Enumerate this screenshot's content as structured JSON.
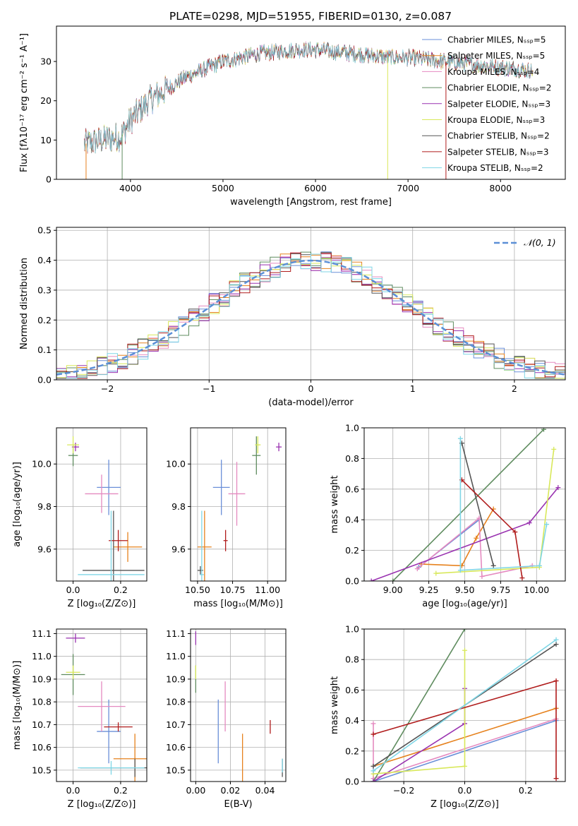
{
  "figure_title": "PLATE=0298, MJD=51955, FIBERID=0130, z=0.087",
  "colors": {
    "chabrier_miles": "#6a8fd8",
    "salpeter_miles": "#e6821e",
    "kroupa_miles": "#e58ac0",
    "chabrier_elodie": "#5f8c5f",
    "salpeter_elodie": "#9932b0",
    "kroupa_elodie": "#d8e85a",
    "chabrier_stelib": "#555555",
    "salpeter_stelib": "#b01c1c",
    "kroupa_stelib": "#7fd6e6"
  },
  "chart_data": [
    {
      "id": "spectrum",
      "type": "line",
      "xlabel": "wavelength [Angstrom, rest frame]",
      "ylabel": "Flux [fλ10⁻¹⁷ erg cm⁻² s⁻¹ A⁻¹]",
      "xlim": [
        3200,
        8700
      ],
      "ylim": [
        0,
        39
      ],
      "xticks": [
        4000,
        5000,
        6000,
        7000,
        8000
      ],
      "yticks": [
        0,
        10,
        20,
        30
      ],
      "grid": false,
      "legend_position": "top-right",
      "legend": [
        {
          "label": "Chabrier MILES, Nₛₛₚ=5",
          "color_key": "chabrier_miles"
        },
        {
          "label": "Salpeter MILES, Nₛₛₚ=5",
          "color_key": "salpeter_miles"
        },
        {
          "label": "Kroupa MILES, Nₛₛₚ=4",
          "color_key": "kroupa_miles"
        },
        {
          "label": "Chabrier ELODIE, Nₛₛₚ=2",
          "color_key": "chabrier_elodie"
        },
        {
          "label": "Salpeter ELODIE, Nₛₛₚ=3",
          "color_key": "salpeter_elodie"
        },
        {
          "label": "Kroupa ELODIE, Nₛₛₚ=3",
          "color_key": "kroupa_elodie"
        },
        {
          "label": "Chabrier STELIB, Nₛₛₚ=2",
          "color_key": "chabrier_stelib"
        },
        {
          "label": "Salpeter STELIB, Nₛₛₚ=3",
          "color_key": "salpeter_stelib"
        },
        {
          "label": "Kroupa STELIB, Nₛₛₚ=2",
          "color_key": "kroupa_stelib"
        }
      ],
      "continuum": {
        "x": [
          3500,
          3700,
          3900,
          4000,
          4200,
          4400,
          4600,
          4800,
          5000,
          5200,
          5400,
          5600,
          5800,
          6000,
          6200,
          6400,
          6600,
          6800,
          7000,
          7200,
          7400,
          7600,
          7800,
          8000,
          8200,
          8350
        ],
        "y": [
          9,
          10,
          11,
          15,
          20,
          23,
          26,
          28,
          30,
          31,
          32,
          32.5,
          33,
          33,
          32.5,
          32,
          31.5,
          31,
          31,
          30.5,
          30,
          29.5,
          29,
          28.5,
          28,
          27.5
        ]
      },
      "dropouts": [
        {
          "x": 3520,
          "y": 0
        },
        {
          "x": 3910,
          "y": 0
        },
        {
          "x": 6780,
          "y": 0
        },
        {
          "x": 7410,
          "y": 0
        }
      ]
    },
    {
      "id": "residuals",
      "type": "histogram",
      "xlabel": "(data-model)/error",
      "ylabel": "Normed distribution",
      "xlim": [
        -2.5,
        2.5
      ],
      "ylim": [
        0,
        0.51
      ],
      "xticks": [
        -2,
        -1,
        0,
        1,
        2
      ],
      "yticks": [
        0,
        0.1,
        0.2,
        0.3,
        0.4,
        0.5
      ],
      "grid": true,
      "bin_edges_range": [
        -2.5,
        2.5
      ],
      "bins": 50,
      "reference_curve": {
        "label": "𝒩(0, 1)",
        "mean": 0,
        "sigma": 1,
        "style": "dashed"
      },
      "legend_position": "top-right"
    },
    {
      "id": "age-vs-Z",
      "type": "scatter-errorbar",
      "xlabel": "Z [log₁₀(Z/Z⊙)]",
      "ylabel": "age  [log₁₀(age/yr)]",
      "xlim": [
        -0.07,
        0.31
      ],
      "ylim": [
        9.45,
        10.17
      ],
      "xticks": [
        0.0,
        0.2
      ],
      "yticks": [
        9.6,
        9.8,
        10.0
      ],
      "grid": true,
      "points": [
        {
          "key": "chabrier_miles",
          "x": 0.15,
          "xerr": 0.05,
          "y": 9.89,
          "yerr": 0.13
        },
        {
          "key": "salpeter_miles",
          "x": 0.23,
          "xerr": 0.06,
          "y": 9.61,
          "yerr": 0.07
        },
        {
          "key": "kroupa_miles",
          "x": 0.12,
          "xerr": 0.07,
          "y": 9.86,
          "yerr": 0.09
        },
        {
          "key": "chabrier_elodie",
          "x": 0.0,
          "xerr": 0.02,
          "y": 10.04,
          "yerr": 0.05
        },
        {
          "key": "salpeter_elodie",
          "x": 0.01,
          "xerr": 0.015,
          "y": 10.08,
          "yerr": 0.02
        },
        {
          "key": "kroupa_elodie",
          "x": 0.0,
          "xerr": 0.025,
          "y": 10.09,
          "yerr": 0.04
        },
        {
          "key": "chabrier_stelib",
          "x": 0.17,
          "xerr": 0.13,
          "y": 9.5,
          "yerr": 0.28
        },
        {
          "key": "salpeter_stelib",
          "x": 0.19,
          "xerr": 0.04,
          "y": 9.64,
          "yerr": 0.05
        },
        {
          "key": "kroupa_stelib",
          "x": 0.16,
          "xerr": 0.14,
          "y": 9.48,
          "yerr": 0.3
        }
      ]
    },
    {
      "id": "age-vs-mass",
      "type": "scatter-errorbar",
      "xlabel": "mass [log₁₀(M/M⊙)]",
      "ylabel": "",
      "xlim": [
        10.45,
        11.13
      ],
      "ylim": [
        9.45,
        10.17
      ],
      "xticks": [
        10.5,
        10.75,
        11.0
      ],
      "yticks": [
        9.6,
        9.8,
        10.0
      ],
      "grid": true,
      "points": [
        {
          "key": "chabrier_miles",
          "x": 10.67,
          "xerr": 0.06,
          "y": 9.89,
          "yerr": 0.13
        },
        {
          "key": "salpeter_miles",
          "x": 10.55,
          "xerr": 0.05,
          "y": 9.61,
          "yerr": 0.17
        },
        {
          "key": "kroupa_miles",
          "x": 10.78,
          "xerr": 0.06,
          "y": 9.86,
          "yerr": 0.15
        },
        {
          "key": "chabrier_elodie",
          "x": 10.92,
          "xerr": 0.03,
          "y": 10.04,
          "yerr": 0.09
        },
        {
          "key": "salpeter_elodie",
          "x": 11.08,
          "xerr": 0.02,
          "y": 10.08,
          "yerr": 0.02
        },
        {
          "key": "kroupa_elodie",
          "x": 10.93,
          "xerr": 0.02,
          "y": 10.09,
          "yerr": 0.04
        },
        {
          "key": "chabrier_stelib",
          "x": 10.52,
          "xerr": 0.02,
          "y": 9.5,
          "yerr": 0.02
        },
        {
          "key": "salpeter_stelib",
          "x": 10.7,
          "xerr": 0.015,
          "y": 9.64,
          "yerr": 0.05
        },
        {
          "key": "kroupa_stelib",
          "x": 10.53,
          "xerr": 0.015,
          "y": 9.48,
          "yerr": 0.3
        }
      ]
    },
    {
      "id": "weight-vs-age",
      "type": "line-marker",
      "xlabel": "age  [log₁₀(age/yr)]",
      "ylabel": "mass weight",
      "xlim": [
        8.8,
        10.2
      ],
      "ylim": [
        0,
        1
      ],
      "xticks": [
        9.0,
        9.25,
        9.5,
        9.75,
        10.0
      ],
      "yticks": [
        0.0,
        0.2,
        0.4,
        0.6,
        0.8,
        1.0
      ],
      "grid": true,
      "series": [
        {
          "key": "chabrier_miles",
          "x": [
            9.18,
            9.6
          ],
          "y": [
            0.09,
            0.4
          ]
        },
        {
          "key": "salpeter_miles",
          "x": [
            9.2,
            9.48,
            9.58,
            9.7
          ],
          "y": [
            0.11,
            0.1,
            0.28,
            0.47
          ]
        },
        {
          "key": "kroupa_miles",
          "x": [
            9.17,
            9.6,
            9.62,
            9.97
          ],
          "y": [
            0.08,
            0.41,
            0.03,
            0.1
          ]
        },
        {
          "key": "chabrier_elodie",
          "x": [
            9.0,
            10.05
          ],
          "y": [
            0.0,
            0.99
          ]
        },
        {
          "key": "salpeter_elodie",
          "x": [
            8.85,
            9.95,
            10.15
          ],
          "y": [
            0.0,
            0.38,
            0.61
          ]
        },
        {
          "key": "kroupa_elodie",
          "x": [
            9.3,
            10.02,
            10.12
          ],
          "y": [
            0.05,
            0.09,
            0.86
          ]
        },
        {
          "key": "chabrier_stelib",
          "x": [
            9.48,
            9.7
          ],
          "y": [
            0.9,
            0.1
          ]
        },
        {
          "key": "salpeter_stelib",
          "x": [
            9.48,
            9.85,
            9.9
          ],
          "y": [
            0.66,
            0.32,
            0.02
          ]
        },
        {
          "key": "kroupa_stelib",
          "x": [
            9.47,
            9.47,
            10.02,
            10.07
          ],
          "y": [
            0.93,
            0.07,
            0.1,
            0.37
          ]
        }
      ]
    },
    {
      "id": "mass-vs-Z",
      "type": "scatter-errorbar",
      "xlabel": "Z [log₁₀(Z/Z⊙)]",
      "ylabel": "mass [log₁₀(M/M⊙)]",
      "xlim": [
        -0.07,
        0.31
      ],
      "ylim": [
        10.45,
        11.12
      ],
      "xticks": [
        0.0,
        0.2
      ],
      "yticks": [
        10.5,
        10.6,
        10.7,
        10.8,
        10.9,
        11.0,
        11.1
      ],
      "grid": true,
      "points": [
        {
          "key": "chabrier_miles",
          "x": 0.15,
          "xerr": 0.05,
          "y": 10.67,
          "yerr": 0.14
        },
        {
          "key": "salpeter_miles",
          "x": 0.26,
          "xerr": 0.09,
          "y": 10.55,
          "yerr": 0.11
        },
        {
          "key": "kroupa_miles",
          "x": 0.12,
          "xerr": 0.1,
          "y": 10.78,
          "yerr": 0.11
        },
        {
          "key": "chabrier_elodie",
          "x": 0.0,
          "xerr": 0.05,
          "y": 10.92,
          "yerr": 0.09
        },
        {
          "key": "salpeter_elodie",
          "x": 0.01,
          "xerr": 0.04,
          "y": 11.08,
          "yerr": 0.02
        },
        {
          "key": "kroupa_elodie",
          "x": 0.0,
          "xerr": 0.03,
          "y": 10.93,
          "yerr": 0.03
        },
        {
          "key": "chabrier_stelib",
          "x": 0.26,
          "xerr": 0.23,
          "y": 10.51,
          "yerr": 0.04
        },
        {
          "key": "salpeter_stelib",
          "x": 0.19,
          "xerr": 0.06,
          "y": 10.69,
          "yerr": 0.02
        },
        {
          "key": "kroupa_stelib",
          "x": 0.16,
          "xerr": 0.14,
          "y": 10.51,
          "yerr": 0.03
        }
      ]
    },
    {
      "id": "mass-vs-EBV",
      "type": "scatter-errorbar",
      "xlabel": "E(B-V)",
      "ylabel": "",
      "xlim": [
        -0.003,
        0.052
      ],
      "ylim": [
        10.45,
        11.12
      ],
      "xticks": [
        0.0,
        0.02,
        0.04
      ],
      "yticks": [
        10.5,
        10.6,
        10.7,
        10.8,
        10.9,
        11.0,
        11.1
      ],
      "grid": true,
      "points": [
        {
          "key": "chabrier_miles",
          "x": 0.013,
          "xerr": 0,
          "y": 10.67,
          "yerr": 0.14
        },
        {
          "key": "salpeter_miles",
          "x": 0.027,
          "xerr": 0,
          "y": 10.55,
          "yerr": 0.11
        },
        {
          "key": "kroupa_miles",
          "x": 0.017,
          "xerr": 0,
          "y": 10.78,
          "yerr": 0.11
        },
        {
          "key": "chabrier_elodie",
          "x": 0.0,
          "xerr": 0,
          "y": 10.9,
          "yerr": 0.06
        },
        {
          "key": "salpeter_elodie",
          "x": 0.0,
          "xerr": 0,
          "y": 11.08,
          "yerr": 0.03
        },
        {
          "key": "kroupa_elodie",
          "x": 0.0,
          "xerr": 0,
          "y": 10.93,
          "yerr": 0.03
        },
        {
          "key": "chabrier_stelib",
          "x": 0.05,
          "xerr": 0,
          "y": 10.51,
          "yerr": 0.04
        },
        {
          "key": "salpeter_stelib",
          "x": 0.043,
          "xerr": 0,
          "y": 10.69,
          "yerr": 0.03
        },
        {
          "key": "kroupa_stelib",
          "x": 0.05,
          "xerr": 0,
          "y": 10.52,
          "yerr": 0.03
        }
      ]
    },
    {
      "id": "weight-vs-Z",
      "type": "line-marker",
      "xlabel": "Z [log₁₀(Z/Z⊙)]",
      "ylabel": "mass weight",
      "xlim": [
        -0.33,
        0.33
      ],
      "ylim": [
        0,
        1
      ],
      "xticks": [
        -0.2,
        0.0,
        0.2
      ],
      "yticks": [
        0.0,
        0.2,
        0.4,
        0.6,
        0.8,
        1.0
      ],
      "grid": true,
      "series": [
        {
          "key": "chabrier_miles",
          "x": [
            -0.3,
            0.3
          ],
          "y": [
            0.0,
            0.4
          ]
        },
        {
          "key": "salpeter_miles",
          "x": [
            -0.3,
            0.3
          ],
          "y": [
            0.1,
            0.48
          ]
        },
        {
          "key": "kroupa_miles",
          "x": [
            -0.3,
            -0.3,
            0.3
          ],
          "y": [
            0.38,
            0.02,
            0.41
          ]
        },
        {
          "key": "chabrier_elodie",
          "x": [
            -0.3,
            0.0
          ],
          "y": [
            0.0,
            1.0
          ]
        },
        {
          "key": "salpeter_elodie",
          "x": [
            -0.3,
            0.0,
            0.0
          ],
          "y": [
            0.0,
            0.38,
            0.61
          ]
        },
        {
          "key": "kroupa_elodie",
          "x": [
            -0.3,
            0.0,
            0.0
          ],
          "y": [
            0.05,
            0.1,
            0.86
          ]
        },
        {
          "key": "chabrier_stelib",
          "x": [
            -0.3,
            0.3
          ],
          "y": [
            0.1,
            0.9
          ]
        },
        {
          "key": "salpeter_stelib",
          "x": [
            -0.3,
            0.3,
            0.3
          ],
          "y": [
            0.31,
            0.66,
            0.02
          ]
        },
        {
          "key": "kroupa_stelib",
          "x": [
            -0.3,
            0.3
          ],
          "y": [
            0.07,
            0.93
          ]
        }
      ]
    }
  ]
}
